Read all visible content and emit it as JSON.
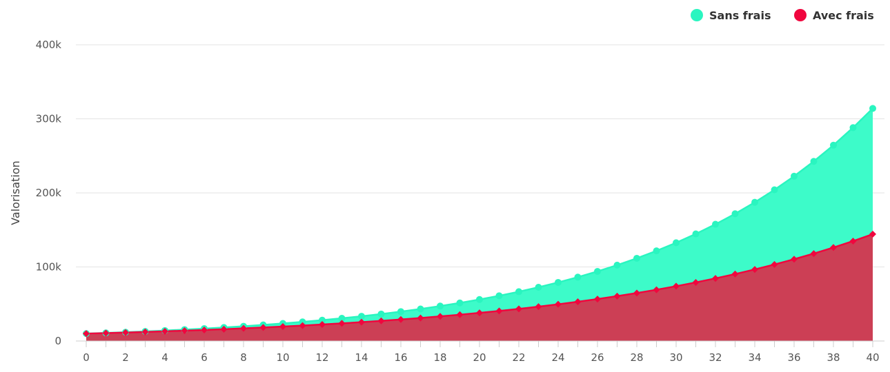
{
  "chart_data": {
    "type": "area",
    "title": "",
    "xlabel": "",
    "ylabel": "Valorisation",
    "x": [
      0,
      1,
      2,
      3,
      4,
      5,
      6,
      7,
      8,
      9,
      10,
      11,
      12,
      13,
      14,
      15,
      16,
      17,
      18,
      19,
      20,
      21,
      22,
      23,
      24,
      25,
      26,
      27,
      28,
      29,
      30,
      31,
      32,
      33,
      34,
      35,
      36,
      37,
      38,
      39,
      40
    ],
    "x_ticks": [
      "0",
      "2",
      "4",
      "6",
      "8",
      "10",
      "12",
      "14",
      "16",
      "18",
      "20",
      "22",
      "24",
      "26",
      "28",
      "30",
      "32",
      "34",
      "36",
      "38",
      "40"
    ],
    "y_ticks": [
      "0",
      "100k",
      "200k",
      "300k",
      "400k"
    ],
    "ylim": [
      0,
      400000
    ],
    "xlim": [
      0,
      40
    ],
    "grid": true,
    "legend_position": "top-right",
    "series": [
      {
        "name": "Sans frais",
        "color": "#2af5c0",
        "fill_color": "#3dfbc9",
        "marker": "circle",
        "values": [
          10000,
          10900,
          11881,
          12950,
          14116,
          15386,
          16771,
          18280,
          19926,
          21719,
          23674,
          25804,
          28127,
          30658,
          33417,
          36425,
          39703,
          43276,
          47171,
          51417,
          56044,
          61088,
          66586,
          72579,
          79111,
          86231,
          93992,
          102451,
          111671,
          121722,
          132677,
          144618,
          157633,
          171821,
          187284,
          204140,
          222512,
          242538,
          264367,
          288160,
          314094
        ]
      },
      {
        "name": "Avec frais",
        "color": "#f0063e",
        "fill_color": "#cc3f55",
        "marker": "diamond",
        "values": [
          10000,
          10690,
          11428,
          12216,
          13059,
          13960,
          14923,
          15953,
          17054,
          18230,
          19488,
          20833,
          22270,
          23807,
          25450,
          27206,
          29083,
          31090,
          33235,
          35528,
          37980,
          40600,
          43402,
          46397,
          49598,
          53020,
          56679,
          60590,
          64770,
          69240,
          74017,
          79124,
          84584,
          90420,
          96659,
          103328,
          110458,
          118080,
          126227,
          134937,
          144248
        ]
      }
    ]
  }
}
